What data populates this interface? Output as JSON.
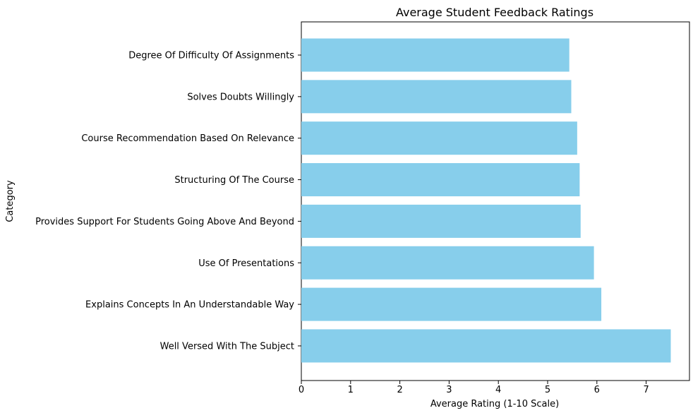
{
  "chart_data": {
    "type": "bar",
    "orientation": "horizontal",
    "title": "Average Student Feedback Ratings",
    "xlabel": "Average Rating (1-10 Scale)",
    "ylabel": "Category",
    "xlim": [
      0,
      7.5
    ],
    "xticks": [
      "0",
      "1",
      "2",
      "3",
      "4",
      "5",
      "6",
      "7"
    ],
    "categories": [
      "Degree Of Difficulty Of Assignments",
      "Solves Doubts Willingly",
      "Course Recommendation Based On Relevance",
      "Structuring Of The Course",
      "Provides Support For Students Going Above And Beyond",
      "Use Of Presentations",
      "Explains Concepts In An Understandable Way",
      "Well Versed With The Subject"
    ],
    "values": [
      5.44,
      5.48,
      5.6,
      5.65,
      5.67,
      5.94,
      6.09,
      7.5
    ],
    "bar_color": "#87ceeb",
    "grid": false,
    "legend": "none"
  }
}
